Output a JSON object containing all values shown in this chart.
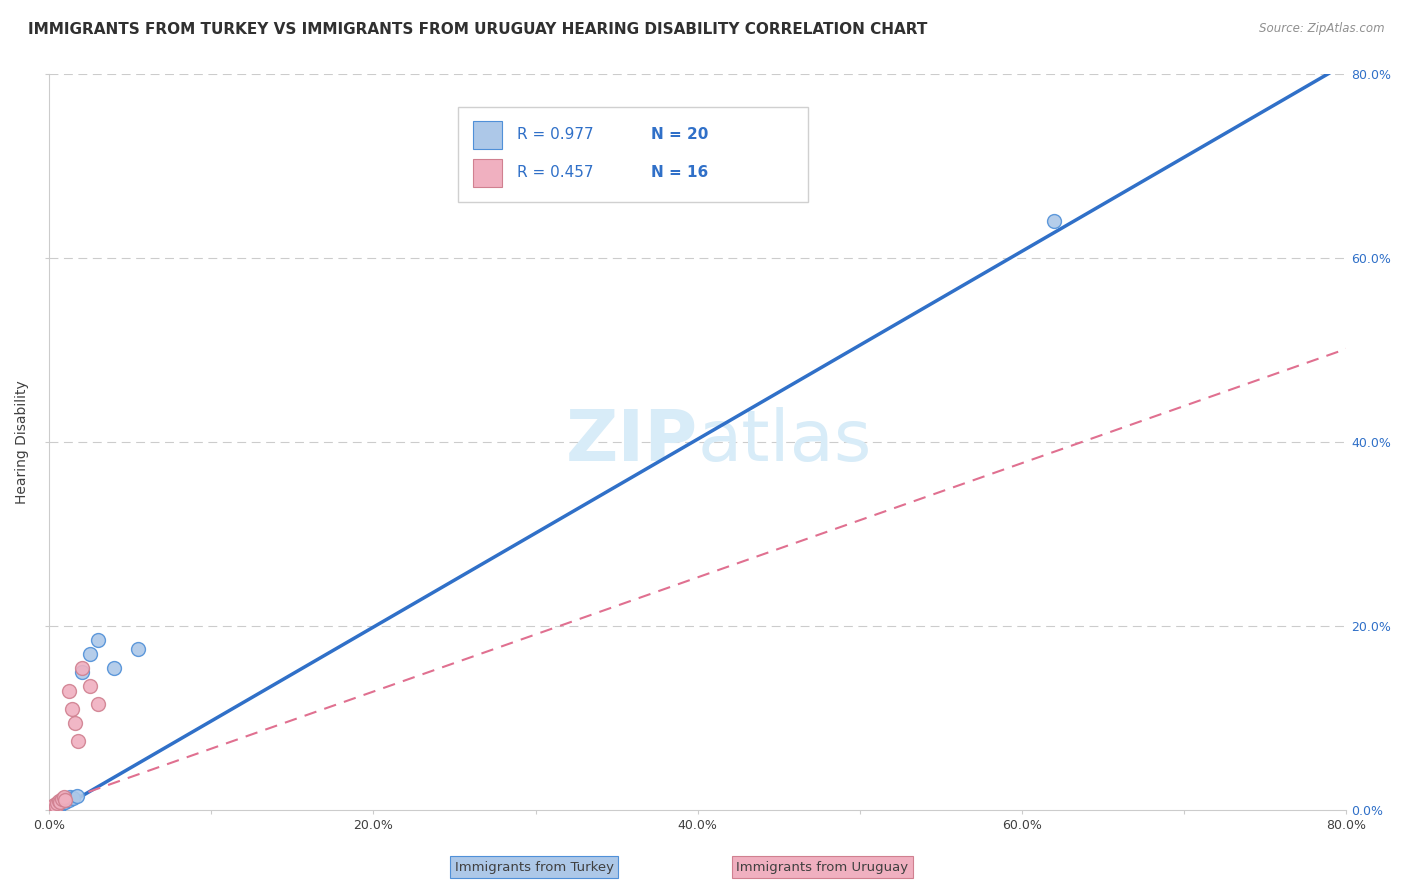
{
  "title": "IMMIGRANTS FROM TURKEY VS IMMIGRANTS FROM URUGUAY HEARING DISABILITY CORRELATION CHART",
  "source": "Source: ZipAtlas.com",
  "ylabel": "Hearing Disability",
  "xlim": [
    0,
    0.8
  ],
  "ylim": [
    0,
    0.8
  ],
  "xticks": [
    0.0,
    0.1,
    0.2,
    0.3,
    0.4,
    0.5,
    0.6,
    0.7,
    0.8
  ],
  "yticks": [
    0.0,
    0.2,
    0.4,
    0.6,
    0.8
  ],
  "ytick_labels_right": [
    "0.0%",
    "20.0%",
    "40.0%",
    "60.0%",
    "80.0%"
  ],
  "turkey_R": 0.977,
  "turkey_N": 20,
  "uruguay_R": 0.457,
  "uruguay_N": 16,
  "turkey_color": "#adc8e8",
  "turkey_line_color": "#3070c8",
  "turkey_edge_color": "#5090d8",
  "uruguay_color": "#f0b0c0",
  "uruguay_line_color": "#e07090",
  "uruguay_edge_color": "#d08090",
  "legend_color": "#3070c8",
  "background_color": "#ffffff",
  "grid_color": "#cccccc",
  "watermark_color": "#d8ecf8",
  "turkey_line_slope": 1.02,
  "turkey_line_intercept": -0.005,
  "uruguay_line_slope": 0.62,
  "uruguay_line_intercept": 0.005,
  "turkey_scatter_x": [
    0.002,
    0.003,
    0.004,
    0.005,
    0.006,
    0.007,
    0.008,
    0.009,
    0.01,
    0.011,
    0.012,
    0.013,
    0.015,
    0.017,
    0.02,
    0.025,
    0.03,
    0.04,
    0.055,
    0.62
  ],
  "turkey_scatter_y": [
    0.002,
    0.004,
    0.003,
    0.005,
    0.007,
    0.006,
    0.008,
    0.01,
    0.009,
    0.012,
    0.011,
    0.014,
    0.013,
    0.016,
    0.15,
    0.17,
    0.185,
    0.155,
    0.175,
    0.64
  ],
  "uruguay_scatter_x": [
    0.002,
    0.003,
    0.004,
    0.005,
    0.006,
    0.007,
    0.008,
    0.009,
    0.01,
    0.012,
    0.014,
    0.016,
    0.018,
    0.02,
    0.025,
    0.03
  ],
  "uruguay_scatter_y": [
    0.004,
    0.006,
    0.005,
    0.008,
    0.01,
    0.009,
    0.012,
    0.014,
    0.011,
    0.13,
    0.11,
    0.095,
    0.075,
    0.155,
    0.135,
    0.115
  ],
  "title_fontsize": 11,
  "axis_fontsize": 9,
  "label_fontsize": 10,
  "scatter_size": 100
}
